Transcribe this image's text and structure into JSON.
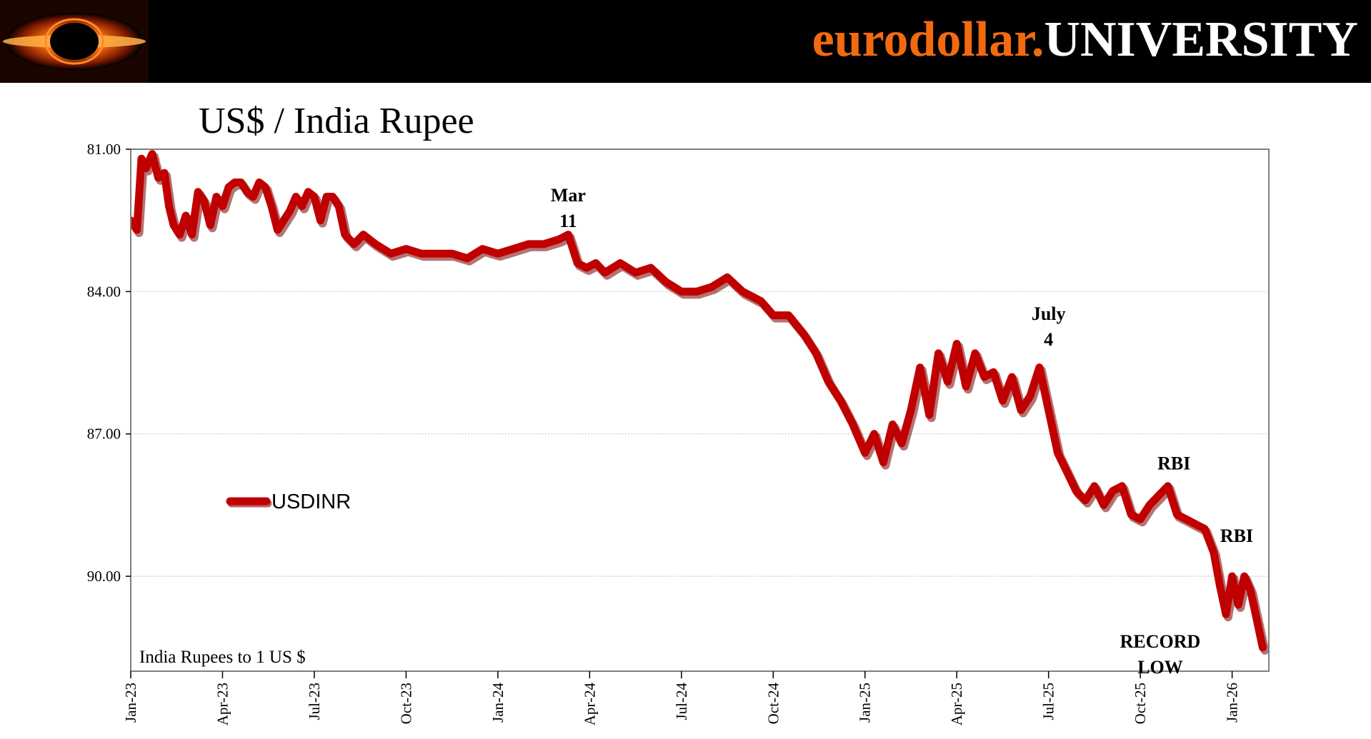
{
  "header": {
    "brand_part1": "eurodollar.",
    "brand_part2": "UNIVERSITY",
    "brand_color": "#f26a0f",
    "logo_name": "black-hole-logo"
  },
  "chart_data": {
    "type": "line",
    "title": "US$ / India Rupee",
    "ylabel": "India Rupees to 1 US $",
    "xlabel": "",
    "y_inverted": true,
    "ylim": [
      81.0,
      92.0
    ],
    "yticks": [
      81.0,
      84.0,
      87.0,
      90.0
    ],
    "ytick_labels": [
      "81.00",
      "84.00",
      "87.00",
      "90.00"
    ],
    "xlim": [
      0,
      37.2
    ],
    "xticks": [
      0,
      3,
      6,
      9,
      12,
      15,
      18,
      21,
      24,
      27,
      30,
      33,
      36
    ],
    "xtick_labels": [
      "Jan-23",
      "Apr-23",
      "Jul-23",
      "Oct-23",
      "Jan-24",
      "Apr-24",
      "Jul-24",
      "Oct-24",
      "Jan-25",
      "Apr-25",
      "Jul-25",
      "Oct-25",
      "Jan-26"
    ],
    "x_unit": "months since Jan-2023",
    "grid": true,
    "legend": "left-middle",
    "series": [
      {
        "name": "USDINR",
        "color": "#c00000",
        "x": [
          0,
          0.2,
          0.35,
          0.5,
          0.7,
          0.9,
          1.1,
          1.25,
          1.4,
          1.6,
          1.8,
          2.0,
          2.2,
          2.4,
          2.6,
          2.8,
          3.0,
          3.2,
          3.4,
          3.6,
          3.8,
          4.0,
          4.2,
          4.4,
          4.6,
          4.8,
          5.0,
          5.2,
          5.4,
          5.6,
          5.8,
          6.0,
          6.2,
          6.4,
          6.6,
          6.8,
          7.0,
          7.3,
          7.6,
          8.0,
          8.5,
          9.0,
          9.5,
          10.0,
          10.5,
          11.0,
          11.5,
          12.0,
          12.5,
          13.0,
          13.5,
          14.0,
          14.3,
          14.6,
          14.9,
          15.2,
          15.5,
          16.0,
          16.5,
          17.0,
          17.5,
          18.0,
          18.5,
          19.0,
          19.5,
          20.0,
          20.3,
          20.6,
          21.0,
          21.5,
          22.0,
          22.4,
          22.8,
          23.2,
          23.6,
          24.0,
          24.3,
          24.6,
          24.9,
          25.2,
          25.5,
          25.8,
          26.1,
          26.4,
          26.7,
          27.0,
          27.3,
          27.6,
          27.9,
          28.2,
          28.5,
          28.8,
          29.1,
          29.4,
          29.7,
          30.0,
          30.3,
          30.6,
          30.9,
          31.2,
          31.5,
          31.8,
          32.1,
          32.4,
          32.7,
          33.0,
          33.3,
          33.6,
          33.9,
          34.2,
          34.5,
          34.8,
          35.1,
          35.4,
          35.6,
          35.8,
          36.0,
          36.2,
          36.4,
          36.6,
          36.8,
          37.0
        ],
        "values": [
          82.5,
          82.7,
          81.2,
          81.4,
          81.1,
          81.6,
          81.5,
          82.2,
          82.6,
          82.8,
          82.4,
          82.8,
          81.9,
          82.1,
          82.6,
          82.0,
          82.2,
          81.8,
          81.7,
          81.7,
          81.9,
          82.0,
          81.7,
          81.8,
          82.2,
          82.7,
          82.5,
          82.3,
          82.0,
          82.2,
          81.9,
          82.0,
          82.5,
          82.0,
          82.0,
          82.2,
          82.8,
          83.0,
          82.8,
          83.0,
          83.2,
          83.1,
          83.2,
          83.2,
          83.2,
          83.3,
          83.1,
          83.2,
          83.1,
          83.0,
          83.0,
          82.9,
          82.8,
          83.4,
          83.5,
          83.4,
          83.6,
          83.4,
          83.6,
          83.5,
          83.8,
          84.0,
          84.0,
          83.9,
          83.7,
          84.0,
          84.1,
          84.2,
          84.5,
          84.5,
          84.9,
          85.3,
          85.9,
          86.3,
          86.8,
          87.4,
          87.0,
          87.6,
          86.8,
          87.2,
          86.5,
          85.6,
          86.6,
          85.3,
          85.9,
          85.1,
          86.0,
          85.3,
          85.8,
          85.7,
          86.3,
          85.8,
          86.5,
          86.2,
          85.6,
          86.5,
          87.4,
          87.8,
          88.2,
          88.4,
          88.1,
          88.5,
          88.2,
          88.1,
          88.7,
          88.8,
          88.5,
          88.3,
          88.1,
          88.7,
          88.8,
          88.9,
          89.0,
          89.5,
          90.2,
          90.8,
          90.0,
          90.6,
          90.0,
          90.3,
          90.9,
          91.5
        ]
      }
    ],
    "annotations": [
      {
        "text_lines": [
          "Mar",
          "11"
        ],
        "x": 14.3,
        "y": 82.1
      },
      {
        "text_lines": [
          "July",
          "4"
        ],
        "x": 30.0,
        "y": 84.6
      },
      {
        "text_lines": [
          "RBI"
        ],
        "x": 34.1,
        "y": 87.75
      },
      {
        "text_lines": [
          "RBI"
        ],
        "x": 36.15,
        "y": 89.28
      },
      {
        "text_lines": [
          "RECORD",
          "LOW"
        ],
        "x": 33.65,
        "y": 91.5
      }
    ]
  }
}
